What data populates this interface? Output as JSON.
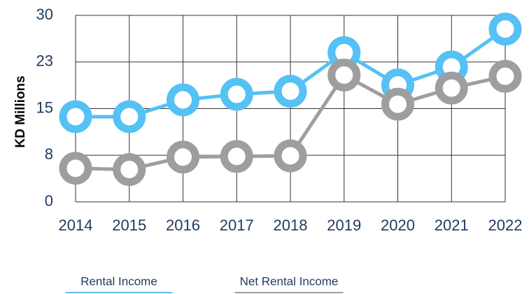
{
  "chart_data": {
    "type": "line",
    "x": [
      "2014",
      "2015",
      "2016",
      "2017",
      "2018",
      "2019",
      "2020",
      "2021",
      "2022"
    ],
    "y_label": "KD Millions",
    "ylim": [
      0,
      30
    ],
    "yticks": [
      0,
      {
        "value": 7.5,
        "label": "8"
      },
      15,
      {
        "value": 22.5,
        "label": "23"
      },
      30
    ],
    "grid": true,
    "legend": "bottom",
    "series": [
      {
        "name": "Rental Income",
        "color": "#55c1f5",
        "values": [
          13.7,
          13.7,
          16.4,
          17.3,
          17.8,
          24.0,
          18.8,
          21.7,
          27.8
        ]
      },
      {
        "name": "Net Rental Income",
        "color": "#9e9e9e",
        "values": [
          5.4,
          5.2,
          7.2,
          7.3,
          7.4,
          20.4,
          15.7,
          18.3,
          20.2
        ]
      }
    ]
  }
}
